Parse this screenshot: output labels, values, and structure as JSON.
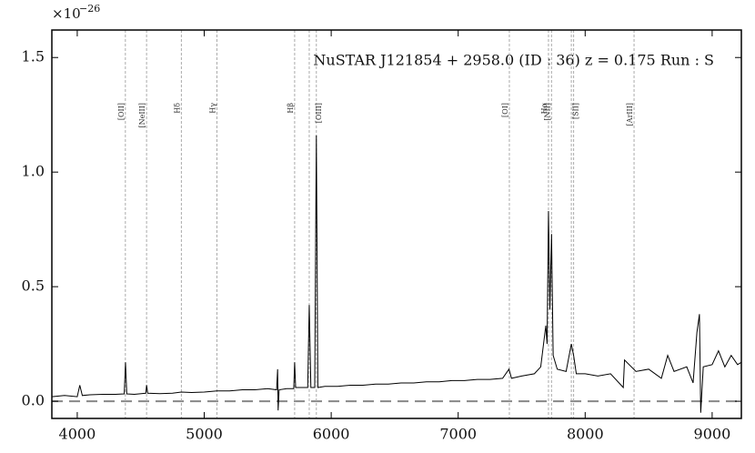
{
  "chart_data": {
    "type": "line",
    "title": "NuSTAR J121854 + 2958.0 (ID : 36)   z = 0.175   Run : S",
    "offset_label": {
      "base": "×10",
      "exponent": "−26"
    },
    "xlim": [
      3800,
      9230
    ],
    "ylim": [
      -0.075,
      1.62
    ],
    "xticks": [
      4000,
      5000,
      6000,
      7000,
      8000,
      9000
    ],
    "yticks": [
      {
        "value": 0,
        "label": "0.0"
      },
      0.5,
      {
        "value": 1,
        "label": "1.0"
      },
      1.5
    ],
    "annotations": [
      {
        "label": "[OII]",
        "lines": [
          4379
        ]
      },
      {
        "label": "[NeIII]",
        "lines": [
          4546
        ]
      },
      {
        "label": "Hδ",
        "lines": [
          4820
        ]
      },
      {
        "label": "Hγ",
        "lines": [
          5100
        ]
      },
      {
        "label": "Hβ",
        "lines": [
          5712
        ]
      },
      {
        "label": "[OIII]",
        "lines": [
          5827,
          5883
        ]
      },
      {
        "label": "[OI]",
        "lines": [
          7403
        ]
      },
      {
        "label": "Hα",
        "lines": [
          7711
        ]
      },
      {
        "label": "[NII]",
        "lines": [
          7735
        ]
      },
      {
        "label": "[SII]",
        "lines": [
          7891,
          7909
        ]
      },
      {
        "label": "[ArIII]",
        "lines": [
          8385
        ]
      }
    ],
    "series": [
      {
        "color": "#000000",
        "x": [
          3800,
          3900,
          4000,
          4020,
          4040,
          4100,
          4200,
          4300,
          4370,
          4380,
          4390,
          4450,
          4540,
          4546,
          4555,
          4650,
          4750,
          4820,
          4900,
          5000,
          5100,
          5200,
          5300,
          5400,
          5500,
          5570,
          5578,
          5582,
          5590,
          5650,
          5705,
          5712,
          5720,
          5800,
          5815,
          5827,
          5840,
          5870,
          5883,
          5895,
          5950,
          6050,
          6150,
          6250,
          6350,
          6450,
          6550,
          6650,
          6750,
          6850,
          6950,
          7050,
          7150,
          7250,
          7350,
          7400,
          7420,
          7500,
          7600,
          7650,
          7690,
          7700,
          7711,
          7722,
          7735,
          7748,
          7780,
          7850,
          7891,
          7909,
          7930,
          8000,
          8100,
          8200,
          8300,
          8310,
          8400,
          8500,
          8600,
          8650,
          8700,
          8800,
          8850,
          8880,
          8900,
          8910,
          8930,
          9000,
          9050,
          9100,
          9150,
          9200,
          9230
        ],
        "values": [
          0.02,
          0.025,
          0.02,
          0.07,
          0.025,
          0.028,
          0.03,
          0.03,
          0.032,
          0.17,
          0.032,
          0.03,
          0.035,
          0.07,
          0.035,
          0.033,
          0.035,
          0.04,
          0.038,
          0.04,
          0.045,
          0.045,
          0.05,
          0.05,
          0.055,
          0.05,
          0.14,
          -0.04,
          0.05,
          0.055,
          0.055,
          0.17,
          0.06,
          0.06,
          0.06,
          0.42,
          0.06,
          0.06,
          1.16,
          0.06,
          0.065,
          0.065,
          0.07,
          0.07,
          0.075,
          0.075,
          0.08,
          0.08,
          0.085,
          0.085,
          0.09,
          0.09,
          0.095,
          0.095,
          0.1,
          0.14,
          0.1,
          0.11,
          0.12,
          0.15,
          0.33,
          0.25,
          0.83,
          0.4,
          0.73,
          0.2,
          0.14,
          0.13,
          0.25,
          0.2,
          0.12,
          0.12,
          0.11,
          0.12,
          0.06,
          0.18,
          0.13,
          0.14,
          0.1,
          0.2,
          0.13,
          0.15,
          0.08,
          0.3,
          0.38,
          -0.05,
          0.15,
          0.16,
          0.22,
          0.15,
          0.2,
          0.16,
          0.17
        ]
      }
    ]
  }
}
